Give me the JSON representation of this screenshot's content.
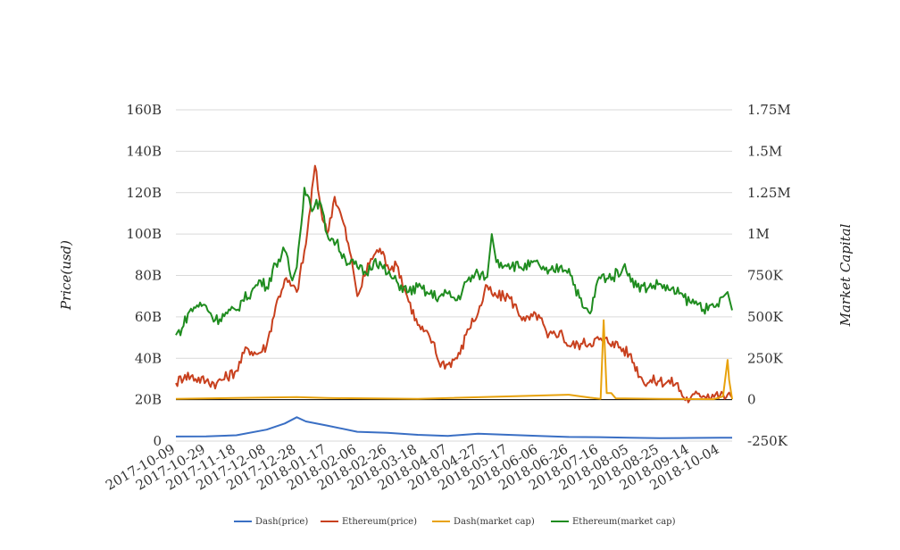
{
  "chart_data": {
    "type": "line",
    "title": "",
    "ylabel_left": "Price(usd)",
    "ylabel_right": "Market Capital",
    "x_tick_labels": [
      "2017-10-09",
      "2017-10-29",
      "2017-11-18",
      "2017-12-08",
      "2017-12-28",
      "2018-01-17",
      "2018-02-06",
      "2018-02-26",
      "2018-03-18",
      "2018-04-07",
      "2018-04-27",
      "2018-05-17",
      "2018-06-06",
      "2018-06-26",
      "2018-07-16",
      "2018-08-05",
      "2018-08-25",
      "2018-09-14",
      "2018-10-04"
    ],
    "x_range": [
      "2017-10-09",
      "2018-10-12"
    ],
    "y_left": {
      "range": [
        0,
        160000000000
      ],
      "tick_labels": [
        "0",
        "20B",
        "40B",
        "60B",
        "80B",
        "100B",
        "120B",
        "140B",
        "160B"
      ]
    },
    "y_right": {
      "range": [
        -250000,
        1750000
      ],
      "tick_labels": [
        "-250K",
        "0",
        "250K",
        "500K",
        "750K",
        "1M",
        "1.25M",
        "1.5M",
        "1.75M"
      ]
    },
    "grid": true,
    "legend_position": "bottom-center",
    "series": [
      {
        "name": "Dash(price)",
        "axis": "left",
        "color": "#3a6fc4",
        "points": [
          [
            "2017-10-09",
            2200000000.0
          ],
          [
            "2017-10-29",
            2300000000.0
          ],
          [
            "2017-11-18",
            2800000000.0
          ],
          [
            "2017-12-08",
            5500000000.0
          ],
          [
            "2017-12-20",
            8500000000.0
          ],
          [
            "2017-12-28",
            11500000000.0
          ],
          [
            "2018-01-03",
            9500000000.0
          ],
          [
            "2018-01-17",
            7500000000.0
          ],
          [
            "2018-02-06",
            4500000000.0
          ],
          [
            "2018-02-26",
            4000000000.0
          ],
          [
            "2018-03-18",
            3000000000.0
          ],
          [
            "2018-04-07",
            2500000000.0
          ],
          [
            "2018-04-27",
            3600000000.0
          ],
          [
            "2018-05-17",
            3000000000.0
          ],
          [
            "2018-06-06",
            2500000000.0
          ],
          [
            "2018-06-26",
            2000000000.0
          ],
          [
            "2018-07-16",
            1900000000.0
          ],
          [
            "2018-08-05",
            1600000000.0
          ],
          [
            "2018-08-25",
            1400000000.0
          ],
          [
            "2018-09-14",
            1500000000.0
          ],
          [
            "2018-10-04",
            1600000000.0
          ],
          [
            "2018-10-12",
            1600000000.0
          ]
        ]
      },
      {
        "name": "Ethereum(price)",
        "axis": "left",
        "color": "#c8401e",
        "points": [
          [
            "2017-10-09",
            28000000000.0
          ],
          [
            "2017-10-15",
            32000000000.0
          ],
          [
            "2017-10-29",
            29000000000.0
          ],
          [
            "2017-11-05",
            28000000000.0
          ],
          [
            "2017-11-18",
            34000000000.0
          ],
          [
            "2017-11-25",
            45000000000.0
          ],
          [
            "2017-12-02",
            42000000000.0
          ],
          [
            "2017-12-08",
            46000000000.0
          ],
          [
            "2017-12-14",
            65000000000.0
          ],
          [
            "2017-12-20",
            78000000000.0
          ],
          [
            "2017-12-28",
            72000000000.0
          ],
          [
            "2018-01-03",
            95000000000.0
          ],
          [
            "2018-01-09",
            133000000000.0
          ],
          [
            "2018-01-13",
            112000000000.0
          ],
          [
            "2018-01-17",
            100000000000.0
          ],
          [
            "2018-01-22",
            118000000000.0
          ],
          [
            "2018-01-28",
            105000000000.0
          ],
          [
            "2018-02-03",
            84000000000.0
          ],
          [
            "2018-02-06",
            70000000000.0
          ],
          [
            "2018-02-15",
            88000000000.0
          ],
          [
            "2018-02-21",
            93000000000.0
          ],
          [
            "2018-02-26",
            85000000000.0
          ],
          [
            "2018-03-05",
            84000000000.0
          ],
          [
            "2018-03-10",
            72000000000.0
          ],
          [
            "2018-03-18",
            56000000000.0
          ],
          [
            "2018-03-28",
            48000000000.0
          ],
          [
            "2018-04-01",
            38000000000.0
          ],
          [
            "2018-04-07",
            37000000000.0
          ],
          [
            "2018-04-15",
            42000000000.0
          ],
          [
            "2018-04-20",
            54000000000.0
          ],
          [
            "2018-04-27",
            62000000000.0
          ],
          [
            "2018-05-03",
            75000000000.0
          ],
          [
            "2018-05-07",
            70000000000.0
          ],
          [
            "2018-05-17",
            70000000000.0
          ],
          [
            "2018-05-28",
            58000000000.0
          ],
          [
            "2018-06-06",
            61000000000.0
          ],
          [
            "2018-06-12",
            50000000000.0
          ],
          [
            "2018-06-20",
            53000000000.0
          ],
          [
            "2018-06-26",
            46000000000.0
          ],
          [
            "2018-07-05",
            47000000000.0
          ],
          [
            "2018-07-16",
            49000000000.0
          ],
          [
            "2018-07-25",
            48000000000.0
          ],
          [
            "2018-08-05",
            42000000000.0
          ],
          [
            "2018-08-14",
            29000000000.0
          ],
          [
            "2018-08-25",
            29000000000.0
          ],
          [
            "2018-09-05",
            28000000000.0
          ],
          [
            "2018-09-10",
            21000000000.0
          ],
          [
            "2018-09-14",
            20000000000.0
          ],
          [
            "2018-09-20",
            23000000000.0
          ],
          [
            "2018-10-04",
            22000000000.0
          ],
          [
            "2018-10-12",
            21000000000.0
          ]
        ]
      },
      {
        "name": "Dash(market cap)",
        "axis": "right",
        "color": "#e8a20c",
        "points": [
          [
            "2017-10-09",
            5000
          ],
          [
            "2017-12-28",
            15000
          ],
          [
            "2018-01-17",
            10000
          ],
          [
            "2018-03-18",
            5000
          ],
          [
            "2018-06-26",
            30000
          ],
          [
            "2018-07-10",
            12000
          ],
          [
            "2018-07-17",
            5000
          ],
          [
            "2018-07-19",
            480000
          ],
          [
            "2018-07-21",
            40000
          ],
          [
            "2018-07-24",
            40000
          ],
          [
            "2018-07-27",
            8000
          ],
          [
            "2018-08-25",
            5000
          ],
          [
            "2018-09-30",
            3000
          ],
          [
            "2018-10-06",
            20000
          ],
          [
            "2018-10-09",
            240000
          ],
          [
            "2018-10-10",
            120000
          ],
          [
            "2018-10-12",
            3000
          ]
        ]
      },
      {
        "name": "Ethereum(market cap)",
        "axis": "right",
        "color": "#1f8c1f",
        "points": [
          [
            "2017-10-09",
            390000
          ],
          [
            "2017-10-13",
            430000
          ],
          [
            "2017-10-17",
            520000
          ],
          [
            "2017-10-23",
            570000
          ],
          [
            "2017-10-29",
            565000
          ],
          [
            "2017-11-04",
            480000
          ],
          [
            "2017-11-12",
            520000
          ],
          [
            "2017-11-18",
            540000
          ],
          [
            "2017-11-22",
            600000
          ],
          [
            "2017-11-28",
            650000
          ],
          [
            "2017-12-04",
            720000
          ],
          [
            "2017-12-08",
            680000
          ],
          [
            "2017-12-14",
            820000
          ],
          [
            "2017-12-20",
            900000
          ],
          [
            "2017-12-25",
            720000
          ],
          [
            "2017-12-28",
            800000
          ],
          [
            "2018-01-02",
            1280000
          ],
          [
            "2018-01-08",
            1150000
          ],
          [
            "2018-01-12",
            1200000
          ],
          [
            "2018-01-17",
            1000000
          ],
          [
            "2018-01-23",
            950000
          ],
          [
            "2018-01-29",
            850000
          ],
          [
            "2018-02-06",
            800000
          ],
          [
            "2018-02-12",
            760000
          ],
          [
            "2018-02-18",
            850000
          ],
          [
            "2018-02-26",
            760000
          ],
          [
            "2018-03-05",
            700000
          ],
          [
            "2018-03-12",
            650000
          ],
          [
            "2018-03-18",
            680000
          ],
          [
            "2018-03-25",
            640000
          ],
          [
            "2018-04-01",
            620000
          ],
          [
            "2018-04-07",
            640000
          ],
          [
            "2018-04-13",
            600000
          ],
          [
            "2018-04-20",
            720000
          ],
          [
            "2018-04-27",
            760000
          ],
          [
            "2018-05-03",
            740000
          ],
          [
            "2018-05-06",
            1000000
          ],
          [
            "2018-05-09",
            830000
          ],
          [
            "2018-05-17",
            820000
          ],
          [
            "2018-05-25",
            800000
          ],
          [
            "2018-06-06",
            820000
          ],
          [
            "2018-06-12",
            760000
          ],
          [
            "2018-06-20",
            800000
          ],
          [
            "2018-06-26",
            790000
          ],
          [
            "2018-07-05",
            560000
          ],
          [
            "2018-07-10",
            520000
          ],
          [
            "2018-07-16",
            740000
          ],
          [
            "2018-07-25",
            740000
          ],
          [
            "2018-08-01",
            800000
          ],
          [
            "2018-08-05",
            760000
          ],
          [
            "2018-08-10",
            680000
          ],
          [
            "2018-08-18",
            680000
          ],
          [
            "2018-08-25",
            700000
          ],
          [
            "2018-09-01",
            660000
          ],
          [
            "2018-09-07",
            640000
          ],
          [
            "2018-09-14",
            590000
          ],
          [
            "2018-09-20",
            580000
          ],
          [
            "2018-09-26",
            540000
          ],
          [
            "2018-10-01",
            560000
          ],
          [
            "2018-10-06",
            620000
          ],
          [
            "2018-10-09",
            650000
          ],
          [
            "2018-10-12",
            540000
          ]
        ]
      }
    ]
  }
}
